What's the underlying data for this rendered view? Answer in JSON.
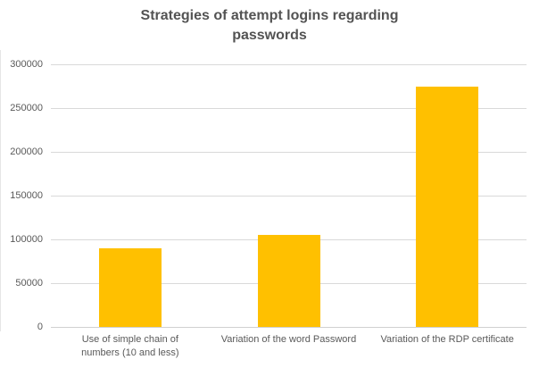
{
  "chart_data": {
    "type": "bar",
    "title": "Strategies of attempt logins regarding passwords",
    "title_display": "Strategies of attempt logins regarding\npasswords",
    "categories": [
      "Use of simple chain of\nnumbers (10 and less)",
      "Variation of the word Password",
      "Variation of the RDP certificate"
    ],
    "values": [
      90000,
      105000,
      275000
    ],
    "xlabel": "",
    "ylabel": "",
    "ylim": [
      0,
      300000
    ],
    "ytick_step": 50000,
    "ytick_labels": [
      "0",
      "50000",
      "100000",
      "150000",
      "200000",
      "250000",
      "300000"
    ],
    "grid": true,
    "legend": false,
    "colors": {
      "bar": "#ffc000",
      "text": "#595959",
      "title_text": "#535353",
      "gridline": "#d9d9d9",
      "baseline": "#d0d0d0"
    }
  }
}
